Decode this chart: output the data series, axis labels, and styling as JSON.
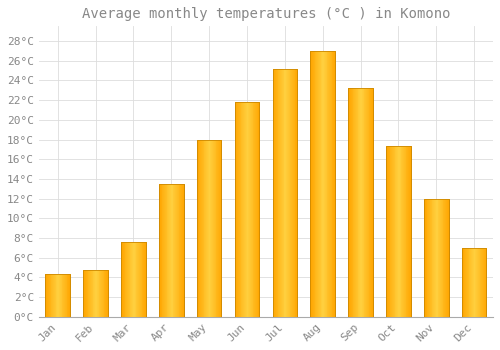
{
  "title": "Average monthly temperatures (°C ) in Komono",
  "months": [
    "Jan",
    "Feb",
    "Mar",
    "Apr",
    "May",
    "Jun",
    "Jul",
    "Aug",
    "Sep",
    "Oct",
    "Nov",
    "Dec"
  ],
  "temperatures": [
    4.3,
    4.8,
    7.6,
    13.5,
    18.0,
    21.8,
    25.2,
    27.0,
    23.2,
    17.3,
    12.0,
    7.0
  ],
  "bar_color_center": "#FFD040",
  "bar_color_edge": "#FFA500",
  "background_color": "#FFFFFF",
  "plot_bg_color": "#FFFFFF",
  "grid_color": "#DDDDDD",
  "yticks": [
    0,
    2,
    4,
    6,
    8,
    10,
    12,
    14,
    16,
    18,
    20,
    22,
    24,
    26,
    28
  ],
  "ylim": [
    0,
    29.5
  ],
  "title_fontsize": 10,
  "tick_fontsize": 8,
  "font_color": "#888888",
  "bar_border_color": "#CC8800",
  "bar_width": 0.65
}
